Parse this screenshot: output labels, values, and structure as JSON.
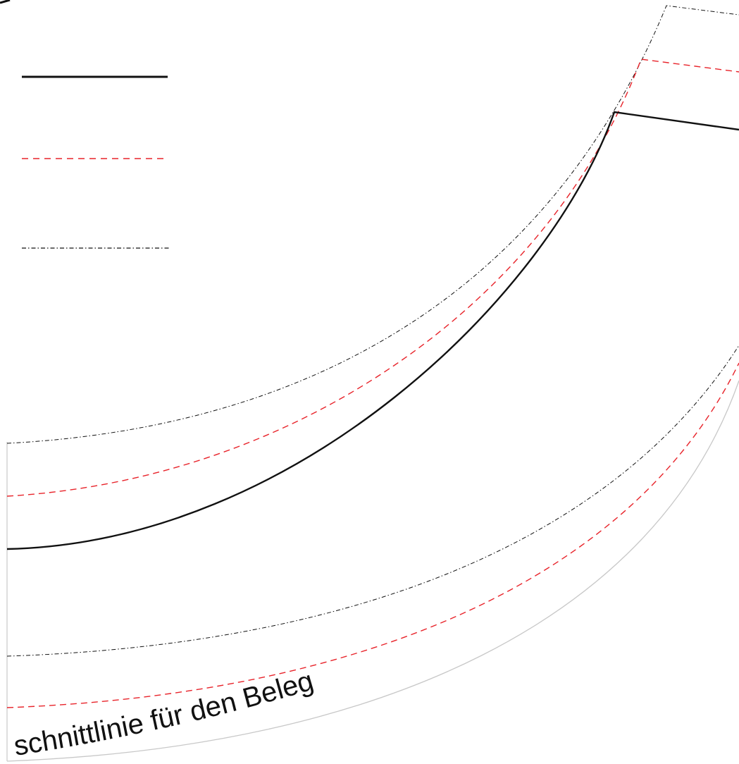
{
  "pattern": {
    "curve_label": "schnittlinie für den Beleg"
  },
  "line_styles": {
    "cut_line": {
      "color": "#111111",
      "style": "solid"
    },
    "seam_allowance": {
      "color": "#e8232a",
      "style": "dashed"
    },
    "facing_line": {
      "color": "#111111",
      "style": "dash-dot"
    },
    "outer_edge": {
      "color": "#c8c8c8",
      "style": "solid"
    }
  }
}
